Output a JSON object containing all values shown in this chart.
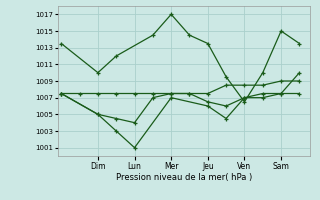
{
  "xlabel": "Pression niveau de la mer( hPa )",
  "xlabels": [
    "Dim",
    "Lun",
    "Mer",
    "Jeu",
    "Ven",
    "Sam"
  ],
  "xtick_positions": [
    1,
    2,
    3,
    4,
    5,
    6
  ],
  "ylim": [
    1000,
    1018
  ],
  "yticks": [
    1001,
    1003,
    1005,
    1007,
    1009,
    1011,
    1013,
    1015,
    1017
  ],
  "xlim": [
    -0.1,
    6.8
  ],
  "bg_color": "#cce8e4",
  "grid_color": "#aad0cc",
  "line_color": "#1a5c1a",
  "lines": [
    {
      "x": [
        0.0,
        1.0,
        1.5,
        2.5,
        3.0,
        3.5,
        4.0,
        4.5,
        5.0,
        5.5,
        6.0,
        6.5
      ],
      "y": [
        1013.5,
        1010.0,
        1012.0,
        1014.5,
        1017.0,
        1014.5,
        1013.5,
        1009.5,
        1006.5,
        1010.0,
        1015.0,
        1013.5
      ]
    },
    {
      "x": [
        0.0,
        0.5,
        1.0,
        1.5,
        2.0,
        2.5,
        3.0,
        3.5,
        4.0,
        4.5,
        5.0,
        5.5,
        6.0,
        6.5
      ],
      "y": [
        1007.5,
        1007.5,
        1007.5,
        1007.5,
        1007.5,
        1007.5,
        1007.5,
        1007.5,
        1007.5,
        1008.5,
        1008.5,
        1008.5,
        1009.0,
        1009.0
      ]
    },
    {
      "x": [
        0.0,
        1.0,
        1.5,
        2.0,
        2.5,
        3.0,
        3.5,
        4.0,
        4.5,
        5.0,
        5.5,
        6.0,
        6.5
      ],
      "y": [
        1007.5,
        1005.0,
        1004.5,
        1004.0,
        1007.0,
        1007.5,
        1007.5,
        1006.5,
        1006.0,
        1007.0,
        1007.5,
        1007.5,
        1007.5
      ]
    },
    {
      "x": [
        0.0,
        1.0,
        1.5,
        2.0,
        3.0,
        4.0,
        4.5,
        5.0,
        5.5,
        6.0,
        6.5
      ],
      "y": [
        1007.5,
        1005.0,
        1003.0,
        1001.0,
        1007.0,
        1006.0,
        1004.5,
        1007.0,
        1007.0,
        1007.5,
        1010.0
      ]
    }
  ]
}
